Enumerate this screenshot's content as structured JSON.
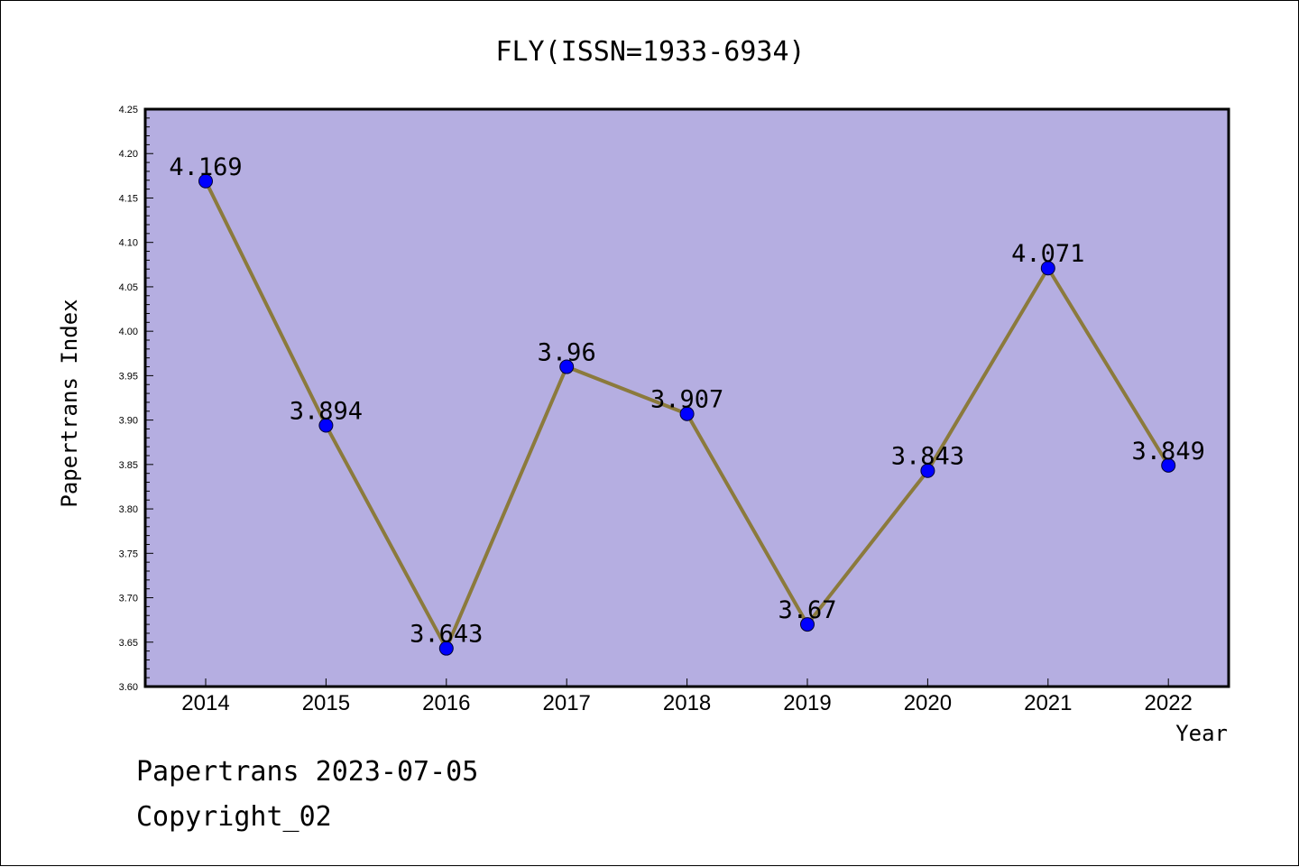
{
  "chart_data": {
    "type": "line",
    "title": "FLY(ISSN=1933-6934)",
    "xlabel": "Year",
    "ylabel": "Papertrans Index",
    "categories": [
      "2014",
      "2015",
      "2016",
      "2017",
      "2018",
      "2019",
      "2020",
      "2021",
      "2022"
    ],
    "series": [
      {
        "values": [
          4.169,
          3.894,
          3.643,
          3.96,
          3.907,
          3.67,
          3.843,
          4.071,
          3.849
        ],
        "labels": [
          "4.169",
          "3.894",
          "3.643",
          "3.96",
          "3.907",
          "3.67",
          "3.843",
          "4.071",
          "3.849"
        ]
      }
    ],
    "ylim": [
      3.6,
      4.25
    ],
    "yticks": [
      "3.60",
      "3.65",
      "3.70",
      "3.75",
      "3.80",
      "3.85",
      "3.90",
      "3.95",
      "4.00",
      "4.05",
      "4.10",
      "4.15",
      "4.20",
      "4.25"
    ],
    "grid": false,
    "legend": "none",
    "colors": {
      "plot_background": "#b5aee1",
      "line": "#8b7a3c",
      "marker": "#0000ff"
    }
  },
  "footer": {
    "line1": "Papertrans 2023-07-05",
    "line2": "Copyright_02"
  }
}
